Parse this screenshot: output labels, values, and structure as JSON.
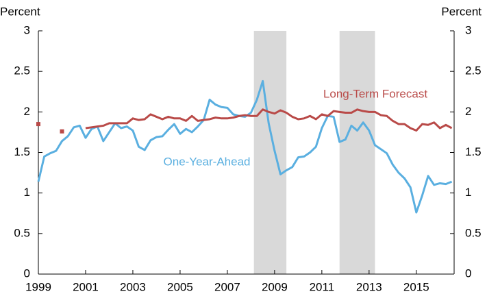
{
  "chart_data": {
    "type": "line",
    "y_label": "Percent",
    "y2_label": "Percent",
    "xlim": [
      1999,
      2016.6
    ],
    "xticks": [
      1999,
      2001,
      2003,
      2005,
      2007,
      2009,
      2011,
      2013,
      2015
    ],
    "ylim": [
      0,
      3
    ],
    "yticks": [
      0,
      0.5,
      1,
      1.5,
      2,
      2.5,
      3
    ],
    "y2lim": [
      0,
      3
    ],
    "y2ticks": [
      0,
      0.5,
      1,
      1.5,
      2,
      2.5,
      3
    ],
    "shaded": [
      [
        2008.125,
        2009.5
      ],
      [
        2011.75,
        2013.25
      ]
    ],
    "shade_color": "#d9d9d9",
    "x": [
      1999,
      1999.25,
      1999.5,
      1999.75,
      2000,
      2000.25,
      2000.5,
      2000.75,
      2001,
      2001.25,
      2001.5,
      2001.75,
      2002,
      2002.25,
      2002.5,
      2002.75,
      2003,
      2003.25,
      2003.5,
      2003.75,
      2004,
      2004.25,
      2004.5,
      2004.75,
      2005,
      2005.25,
      2005.5,
      2005.75,
      2006,
      2006.25,
      2006.5,
      2006.75,
      2007,
      2007.25,
      2007.5,
      2007.75,
      2008,
      2008.25,
      2008.5,
      2008.75,
      2009,
      2009.25,
      2009.5,
      2009.75,
      2010,
      2010.25,
      2010.5,
      2010.75,
      2011,
      2011.25,
      2011.5,
      2011.75,
      2012,
      2012.25,
      2012.5,
      2012.75,
      2013,
      2013.25,
      2013.5,
      2013.75,
      2014,
      2014.25,
      2014.5,
      2014.75,
      2015,
      2015.25,
      2015.5,
      2015.75,
      2016,
      2016.25,
      2016.5
    ],
    "series": [
      {
        "name": "One-Year-Ahead",
        "color": "#5aafe0",
        "values": [
          1.14,
          1.45,
          1.49,
          1.52,
          1.64,
          1.7,
          1.81,
          1.83,
          1.68,
          1.79,
          1.82,
          1.64,
          1.75,
          1.86,
          1.8,
          1.82,
          1.77,
          1.57,
          1.53,
          1.65,
          1.69,
          1.7,
          1.78,
          1.85,
          1.73,
          1.79,
          1.75,
          1.82,
          1.9,
          2.15,
          2.09,
          2.06,
          2.05,
          1.97,
          1.95,
          1.94,
          1.99,
          2.15,
          2.38,
          1.86,
          1.52,
          1.23,
          1.28,
          1.32,
          1.44,
          1.45,
          1.5,
          1.57,
          1.8,
          1.95,
          1.94,
          1.63,
          1.66,
          1.83,
          1.77,
          1.87,
          1.77,
          1.59,
          1.54,
          1.49,
          1.35,
          1.25,
          1.18,
          1.07,
          0.76,
          0.97,
          1.21,
          1.1,
          1.12,
          1.11,
          1.14
        ]
      },
      {
        "name": "Long-Term Forecast",
        "color": "#b94a48",
        "values": [
          1.85,
          null,
          null,
          null,
          1.76,
          null,
          null,
          null,
          1.8,
          1.81,
          1.82,
          1.83,
          1.86,
          1.86,
          1.86,
          1.86,
          1.92,
          1.9,
          1.91,
          1.97,
          1.94,
          1.91,
          1.94,
          1.92,
          1.92,
          1.89,
          1.95,
          1.89,
          1.9,
          1.91,
          1.93,
          1.92,
          1.92,
          1.93,
          1.95,
          1.96,
          1.95,
          1.95,
          2.03,
          2.0,
          1.98,
          2.02,
          1.99,
          1.94,
          1.91,
          1.92,
          1.95,
          1.91,
          1.97,
          1.95,
          2.01,
          2.0,
          1.99,
          1.99,
          2.03,
          2.01,
          2.0,
          2.0,
          1.96,
          1.95,
          1.89,
          1.85,
          1.85,
          1.8,
          1.77,
          1.85,
          1.84,
          1.87,
          1.8,
          1.84,
          1.8
        ]
      }
    ]
  }
}
